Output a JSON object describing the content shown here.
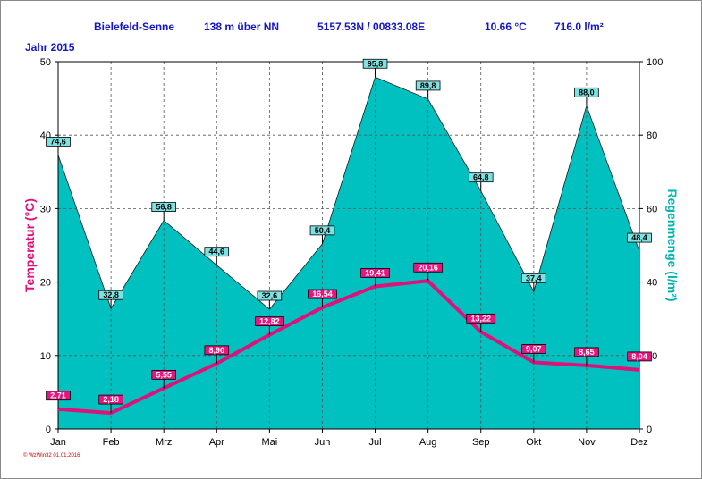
{
  "header": {
    "station": "Bielefeld-Senne",
    "altitude": "138 m über NN",
    "coords": "5157.53N / 00833.08E",
    "mean_temp": "10.66 °C",
    "precip_total": "716.0 l/m²"
  },
  "year_label": "Jahr  2015",
  "footer": "© WzWin32  01.01.2016",
  "chart_data": {
    "type": "area",
    "categories": [
      "Jan",
      "Feb",
      "Mrz",
      "Apr",
      "Mai",
      "Jun",
      "Jul",
      "Aug",
      "Sep",
      "Okt",
      "Nov",
      "Dez"
    ],
    "xlabel": "",
    "ylabel_left": "Temperatur  (°C)",
    "ylabel_right": "Regenmenge  (l/m²)",
    "ylim_left": [
      0,
      50
    ],
    "ylim_right": [
      0,
      100
    ],
    "yticks_left": [
      "0",
      "10",
      "20",
      "30",
      "40",
      "50"
    ],
    "yticks_right": [
      "0",
      "20",
      "40",
      "60",
      "80",
      "100"
    ],
    "grid": true,
    "series": [
      {
        "axis": "right",
        "kind": "area",
        "color": "#00c0c0",
        "values": [
          74.6,
          32.8,
          56.8,
          44.6,
          32.6,
          50.4,
          95.8,
          89.8,
          64.8,
          37.4,
          88.0,
          48.4
        ],
        "labels": [
          "74,6",
          "32,8",
          "56,8",
          "44,6",
          "32,6",
          "50,4",
          "95,8",
          "89,8",
          "64,8",
          "37,4",
          "88,0",
          "48,4"
        ]
      },
      {
        "axis": "left",
        "kind": "line",
        "color": "#e0107a",
        "values": [
          2.71,
          2.18,
          5.55,
          8.9,
          12.82,
          16.54,
          19.41,
          20.16,
          13.22,
          9.07,
          8.65,
          8.04
        ],
        "labels": [
          "2,71",
          "2,18",
          "5,55",
          "8,90",
          "12,82",
          "16,54",
          "19,41",
          "20,16",
          "13,22",
          "9,07",
          "8,65",
          "8,04"
        ]
      }
    ]
  }
}
